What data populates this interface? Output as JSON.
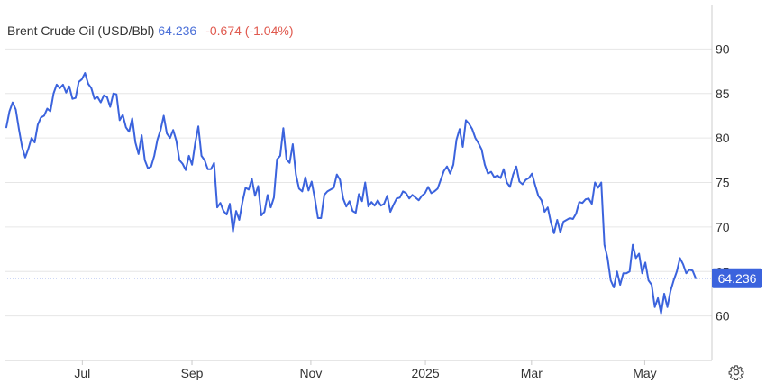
{
  "header": {
    "instrument": "Brent Crude Oil (USD/Bbl)",
    "last_price": "64.236",
    "change": "-0.674 (-1.04%)"
  },
  "colors": {
    "line": "#3b63dd",
    "badge": "#3b63dd",
    "grid": "#e6e6e6",
    "change_negative": "#e05a4f"
  },
  "icons": {
    "settings": "gear-icon"
  },
  "chart_data": {
    "type": "line",
    "title": "Brent Crude Oil (USD/Bbl)",
    "xlabel": "",
    "ylabel": "",
    "ylim": [
      55,
      95
    ],
    "y_ticks": [
      60,
      65,
      70,
      75,
      80,
      85,
      90
    ],
    "x_ticks": [
      {
        "label": "Jul",
        "pos": 0.11
      },
      {
        "label": "Sep",
        "pos": 0.265
      },
      {
        "label": "Nov",
        "pos": 0.433
      },
      {
        "label": "2025",
        "pos": 0.595
      },
      {
        "label": "Mar",
        "pos": 0.745
      },
      {
        "label": "May",
        "pos": 0.905
      }
    ],
    "last_value": 64.236,
    "last_label": "64.236",
    "grid": "horizontal",
    "series": [
      {
        "values": [
          81.2,
          83.0,
          84.0,
          83.2,
          81.0,
          79.0,
          77.8,
          78.8,
          80.0,
          79.5,
          81.5,
          82.3,
          82.5,
          83.3,
          83.0,
          85.0,
          86.0,
          85.6,
          86.0,
          85.1,
          85.8,
          84.4,
          84.5,
          86.3,
          86.6,
          87.3,
          86.1,
          85.6,
          84.4,
          84.6,
          84.0,
          84.8,
          84.6,
          83.5,
          85.0,
          84.9,
          82.0,
          82.6,
          81.2,
          80.7,
          82.2,
          79.5,
          78.2,
          80.3,
          77.5,
          76.6,
          76.8,
          78.0,
          79.8,
          80.9,
          82.5,
          80.5,
          80.0,
          80.9,
          79.7,
          77.5,
          77.1,
          76.4,
          78.0,
          77.0,
          79.4,
          81.3,
          78.0,
          77.5,
          76.5,
          76.5,
          77.2,
          72.2,
          72.7,
          71.8,
          71.4,
          72.6,
          69.5,
          71.8,
          70.8,
          72.8,
          74.4,
          74.2,
          75.4,
          73.5,
          74.6,
          71.3,
          71.7,
          73.6,
          72.2,
          73.3,
          77.6,
          78.0,
          81.1,
          77.6,
          77.2,
          79.3,
          75.9,
          74.3,
          74.0,
          75.6,
          74.1,
          75.1,
          73.2,
          71.0,
          71.0,
          73.6,
          74.0,
          74.2,
          74.4,
          75.9,
          75.3,
          73.2,
          72.3,
          72.9,
          71.8,
          71.6,
          73.7,
          72.9,
          75.0,
          72.3,
          72.8,
          72.4,
          73.0,
          72.4,
          72.6,
          73.5,
          71.7,
          72.5,
          73.2,
          73.3,
          74.0,
          73.8,
          73.2,
          73.6,
          73.3,
          73.0,
          73.5,
          73.8,
          74.5,
          73.8,
          74.0,
          74.3,
          75.3,
          76.3,
          76.8,
          76.0,
          77.0,
          79.8,
          81.0,
          79.0,
          82.0,
          81.6,
          81.0,
          80.0,
          79.4,
          78.7,
          77.0,
          76.0,
          76.2,
          75.6,
          75.8,
          75.5,
          76.5,
          75.0,
          74.5,
          75.9,
          76.8,
          75.1,
          74.8,
          75.3,
          75.5,
          76.0,
          74.7,
          73.5,
          73.0,
          71.7,
          72.2,
          70.5,
          69.3,
          70.8,
          69.4,
          70.6,
          70.8,
          71.0,
          70.9,
          71.5,
          72.8,
          72.7,
          73.1,
          73.2,
          72.6,
          75.0,
          74.4,
          75.0,
          68.0,
          66.5,
          64.0,
          63.2,
          65.0,
          63.5,
          64.8,
          64.8,
          65.0,
          68.0,
          66.5,
          67.0,
          64.8,
          66.0,
          64.0,
          63.5,
          61.0,
          62.0,
          60.3,
          62.5,
          61.0,
          62.8,
          64.0,
          65.0,
          66.5,
          65.8,
          64.8,
          65.2,
          65.1,
          64.236
        ]
      }
    ]
  }
}
